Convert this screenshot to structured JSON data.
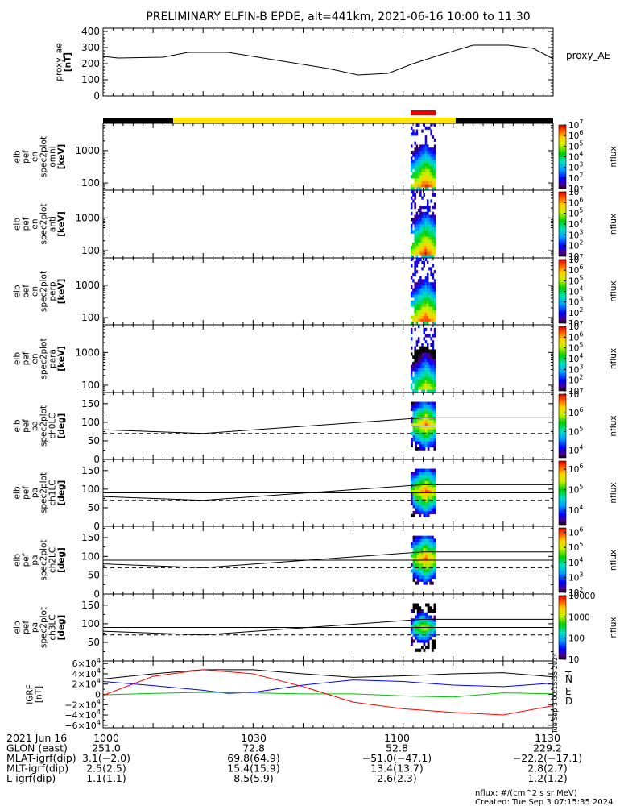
{
  "title": "PRELIMINARY ELFIN-B EPDE, alt=441km, 2021-06-16 10:00 to 11:30",
  "colors": {
    "orbit_bar_black": "#000000",
    "orbit_bar_yellow": "#ffe600",
    "science_zone_red": "#e60000",
    "line_black": "#000000",
    "bfield_T": "#000000",
    "bfield_N": "#0000ff",
    "bfield_E": "#00c000",
    "bfield_D": "#ff0000"
  },
  "time_axis": {
    "start_min": 0,
    "end_min": 90,
    "tick_minutes": [
      0,
      30,
      60,
      90
    ],
    "tick_labels": [
      "1000",
      "1030",
      "1100",
      "1130"
    ]
  },
  "chart_data": [
    {
      "type": "line",
      "panel": "proxy_ae",
      "ylabel_lines": [
        "proxy_ae",
        "[nT]"
      ],
      "right_label": "proxy_AE",
      "ylim": [
        0,
        420
      ],
      "yticks": [
        0,
        100,
        200,
        300,
        400
      ],
      "ytick_labels": [
        "0",
        "100",
        "200",
        "300",
        "400"
      ],
      "x_min": [
        0,
        3,
        12,
        17,
        25,
        36,
        45,
        51,
        57,
        62,
        67,
        74,
        81,
        86,
        90
      ],
      "values": [
        245,
        235,
        240,
        270,
        270,
        215,
        170,
        130,
        140,
        200,
        250,
        315,
        315,
        295,
        230
      ]
    },
    {
      "type": "bar",
      "panel": "orbit_bar",
      "segments": [
        {
          "start_min": 0,
          "end_min": 14,
          "color": "black"
        },
        {
          "start_min": 14,
          "end_min": 70.5,
          "color": "yellow"
        },
        {
          "start_min": 70.5,
          "end_min": 90,
          "color": "black"
        }
      ],
      "science_zone": [
        {
          "start_min": 61.5,
          "end_min": 66.5,
          "color": "red"
        }
      ]
    },
    {
      "type": "heatmap",
      "panel": "spec_omni",
      "ylabel_lines": [
        "elb",
        "pef",
        "en",
        "spec2plot",
        "omni",
        "[keV]"
      ],
      "yticks": [
        100,
        1000
      ],
      "ytick_labels": [
        "100",
        "1000"
      ],
      "ylim": [
        60,
        7000
      ],
      "active_min": [
        61.5,
        66.5
      ],
      "cbar_label": "nflux",
      "cbar_range_exp": [
        1,
        7
      ],
      "cbar_tick_labels": [
        "10",
        "10^2",
        "10^3",
        "10^4",
        "10^5",
        "10^6",
        "10^7"
      ]
    },
    {
      "type": "heatmap",
      "panel": "spec_anti",
      "ylabel_lines": [
        "elb",
        "pef",
        "en",
        "spec2plot",
        "anti",
        "[keV]"
      ],
      "yticks": [
        100,
        1000
      ],
      "ytick_labels": [
        "100",
        "1000"
      ],
      "ylim": [
        60,
        7000
      ],
      "active_min": [
        61.5,
        66.5
      ],
      "cbar_label": "nflux",
      "cbar_range_exp": [
        1,
        7
      ],
      "cbar_tick_labels": [
        "10",
        "10^2",
        "10^3",
        "10^4",
        "10^5",
        "10^6",
        "10^7"
      ]
    },
    {
      "type": "heatmap",
      "panel": "spec_perp",
      "ylabel_lines": [
        "elb",
        "pef",
        "en",
        "spec2plot",
        "perp",
        "[keV]"
      ],
      "yticks": [
        100,
        1000
      ],
      "ytick_labels": [
        "100",
        "1000"
      ],
      "ylim": [
        60,
        7000
      ],
      "active_min": [
        61.5,
        66.5
      ],
      "cbar_label": "nflux",
      "cbar_range_exp": [
        1,
        7
      ],
      "cbar_tick_labels": [
        "10",
        "10^2",
        "10^3",
        "10^4",
        "10^5",
        "10^6",
        "10^7"
      ]
    },
    {
      "type": "heatmap",
      "panel": "spec_para",
      "ylabel_lines": [
        "elb",
        "pef",
        "en",
        "spec2plot",
        "para",
        "[keV]"
      ],
      "yticks": [
        100,
        1000
      ],
      "ytick_labels": [
        "100",
        "1000"
      ],
      "ylim": [
        60,
        7000
      ],
      "active_min": [
        61.5,
        66.5
      ],
      "cbar_label": "nflux",
      "cbar_range_exp": [
        1,
        7
      ],
      "cbar_tick_labels": [
        "10",
        "10^2",
        "10^3",
        "10^4",
        "10^5",
        "10^6",
        "10^7"
      ]
    },
    {
      "type": "heatmap",
      "panel": "pa_ch0",
      "ylabel_lines": [
        "elb",
        "pef",
        "pa",
        "spec2plot",
        "ch0LC",
        "[deg]"
      ],
      "yticks": [
        0,
        50,
        100,
        150
      ],
      "ytick_labels": [
        "0",
        "50",
        "100",
        "150"
      ],
      "ylim": [
        0,
        180
      ],
      "active_min": [
        61.5,
        66.5
      ],
      "pa_range": [
        25,
        155
      ],
      "lines_min": [
        0,
        20,
        64,
        90
      ],
      "upper_line": [
        80,
        70,
        112,
        112
      ],
      "hline_solid": 90,
      "hline_dashed": 70,
      "cbar_label": "nflux",
      "cbar_range_exp": [
        3.6,
        7
      ],
      "cbar_tick_labels": [
        "10^4",
        "10^5",
        "10^6",
        "10^7"
      ]
    },
    {
      "type": "heatmap",
      "panel": "pa_ch1",
      "ylabel_lines": [
        "elb",
        "pef",
        "pa",
        "spec2plot",
        "ch1LC",
        "[deg]"
      ],
      "yticks": [
        0,
        50,
        100,
        150
      ],
      "ytick_labels": [
        "0",
        "50",
        "100",
        "150"
      ],
      "ylim": [
        0,
        180
      ],
      "active_min": [
        61.5,
        66.5
      ],
      "pa_range": [
        25,
        155
      ],
      "lines_min": [
        0,
        20,
        64,
        90
      ],
      "upper_line": [
        80,
        70,
        112,
        112
      ],
      "hline_solid": 90,
      "hline_dashed": 70,
      "cbar_label": "nflux",
      "cbar_range_exp": [
        3.3,
        6.4
      ],
      "cbar_tick_labels": [
        "10^4",
        "10^5",
        "10^6"
      ]
    },
    {
      "type": "heatmap",
      "panel": "pa_ch2",
      "ylabel_lines": [
        "elb",
        "pef",
        "pa",
        "spec2plot",
        "ch2LC",
        "[deg]"
      ],
      "yticks": [
        0,
        50,
        100,
        150
      ],
      "ytick_labels": [
        "0",
        "50",
        "100",
        "150"
      ],
      "ylim": [
        0,
        180
      ],
      "active_min": [
        61.5,
        66.5
      ],
      "pa_range": [
        25,
        155
      ],
      "lines_min": [
        0,
        20,
        64,
        90
      ],
      "upper_line": [
        80,
        70,
        112,
        112
      ],
      "hline_solid": 90,
      "hline_dashed": 70,
      "cbar_label": "nflux",
      "cbar_range_exp": [
        2,
        6.3
      ],
      "cbar_tick_labels": [
        "10^2",
        "10^3",
        "10^4",
        "10^5",
        "10^6"
      ]
    },
    {
      "type": "heatmap",
      "panel": "pa_ch3",
      "ylabel_lines": [
        "elb",
        "pef",
        "pa",
        "spec2plot",
        "ch3LC",
        "[deg]"
      ],
      "yticks": [
        50,
        100,
        150
      ],
      "ytick_labels": [
        "50",
        "100",
        "150"
      ],
      "ylim": [
        0,
        180
      ],
      "active_min": [
        61.5,
        66.5
      ],
      "pa_range": [
        25,
        155
      ],
      "lines_min": [
        0,
        20,
        64,
        90
      ],
      "upper_line": [
        80,
        70,
        112,
        112
      ],
      "hline_solid": 90,
      "hline_dashed": 70,
      "cbar_label": "nflux",
      "cbar_range_exp": [
        1,
        4
      ],
      "cbar_tick_labels": [
        "10",
        "100",
        "1000",
        "10000"
      ]
    },
    {
      "type": "line",
      "panel": "igrf",
      "ylabel_lines": [
        "IGRF",
        "[nT]"
      ],
      "ylim": [
        -65000,
        65000
      ],
      "yticks": [
        -60000,
        -40000,
        -20000,
        0,
        20000,
        40000,
        60000
      ],
      "ytick_labels": [
        "−6×10^4",
        "−4×10^4",
        "−2×10^4",
        "0",
        "2×10^4",
        "4×10^4",
        "6×10^4"
      ],
      "series": [
        {
          "name": "T",
          "color": "#000000",
          "x_min": [
            0,
            10,
            20,
            30,
            40,
            50,
            60,
            70,
            80,
            90
          ],
          "values": [
            30000,
            40000,
            48000,
            48000,
            40000,
            33000,
            36000,
            40000,
            42000,
            34000
          ]
        },
        {
          "name": "N",
          "color": "#0000ff",
          "x_min": [
            0,
            10,
            20,
            25,
            30,
            40,
            50,
            60,
            70,
            80,
            90
          ],
          "values": [
            25000,
            17000,
            8000,
            2000,
            4000,
            18000,
            28000,
            25000,
            18000,
            15000,
            22000
          ]
        },
        {
          "name": "E",
          "color": "#00c000",
          "x_min": [
            0,
            10,
            20,
            30,
            40,
            50,
            60,
            70,
            80,
            90
          ],
          "values": [
            -1000,
            2000,
            4000,
            3000,
            1000,
            1000,
            -3000,
            -5000,
            3000,
            1000
          ]
        },
        {
          "name": "D",
          "color": "#ff0000",
          "x_min": [
            0,
            10,
            20,
            30,
            40,
            50,
            60,
            70,
            80,
            90
          ],
          "values": [
            -2000,
            35000,
            48000,
            40000,
            15000,
            -15000,
            -28000,
            -35000,
            -40000,
            -22000
          ]
        }
      ]
    }
  ],
  "footer": {
    "rows": [
      {
        "label": "2021 Jun 16",
        "values": [
          "1000",
          "1030",
          "1100",
          "1130"
        ]
      },
      {
        "label": "GLON (east)",
        "values": [
          "251.0",
          "72.8",
          "52.8",
          "229.2"
        ]
      },
      {
        "label": "MLAT-igrf(dip)",
        "values": [
          "3.1(−2.0)",
          "69.8(64.9)",
          "−51.0(−47.1)",
          "−22.2(−17.1)"
        ]
      },
      {
        "label": "MLT-igrf(dip)",
        "values": [
          "2.5(2.5)",
          "15.4(15.9)",
          "13.4(13.7)",
          "2.8(2.7)"
        ]
      },
      {
        "label": "L-igrf(dip)",
        "values": [
          "1.1(1.1)",
          "8.5(5.9)",
          "2.6(2.3)",
          "1.2(1.2)"
        ]
      }
    ],
    "units_note": "nflux: #/(cm^2 s sr MeV)",
    "created": "Created: Tue Sep  3 07:15:35 2024",
    "side_stamp": "Tue Sep  3 00:15:35 2024"
  }
}
